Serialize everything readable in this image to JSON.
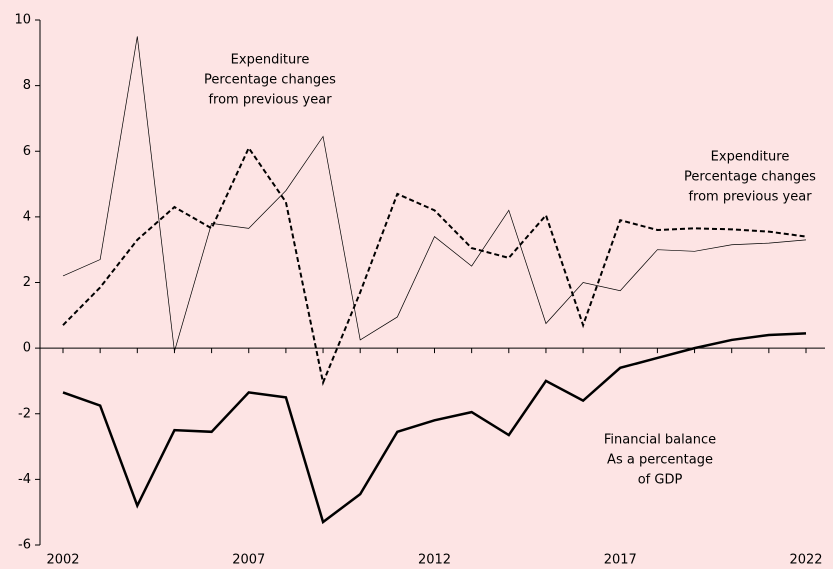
{
  "chart_data": {
    "type": "line",
    "x": [
      2002,
      2003,
      2004,
      2005,
      2006,
      2007,
      2008,
      2009,
      2010,
      2011,
      2012,
      2013,
      2014,
      2015,
      2016,
      2017,
      2018,
      2019,
      2020,
      2021,
      2022
    ],
    "xlim": [
      2002,
      2022
    ],
    "xticks": [
      2002,
      2007,
      2012,
      2017,
      2022
    ],
    "ylim": [
      -6,
      10
    ],
    "yticks": [
      -6,
      -4,
      -2,
      0,
      2,
      4,
      6,
      8,
      10
    ],
    "series": [
      {
        "color": "#000000",
        "line_style": "thin",
        "values": [
          2.2,
          2.7,
          9.5,
          -0.1,
          3.8,
          3.65,
          4.8,
          6.45,
          0.25,
          0.95,
          3.4,
          2.5,
          4.2,
          0.75,
          2.0,
          1.75,
          3.0,
          2.95,
          3.15,
          3.2,
          3.3
        ]
      },
      {
        "color": "#000000",
        "line_style": "dashed",
        "values": [
          0.7,
          1.85,
          3.3,
          4.3,
          3.65,
          6.1,
          4.45,
          -1.05,
          1.7,
          4.7,
          4.2,
          3.05,
          2.75,
          4.05,
          0.7,
          3.9,
          3.6,
          3.65,
          3.62,
          3.55,
          3.4
        ]
      },
      {
        "color": "#000000",
        "line_style": "thick",
        "values": [
          -1.35,
          -1.75,
          -4.8,
          -2.5,
          -2.55,
          -1.35,
          -1.5,
          -5.3,
          -4.45,
          -2.55,
          -2.2,
          -1.95,
          -2.65,
          -1.0,
          -1.6,
          -0.6,
          -0.3,
          0.0,
          0.25,
          0.4,
          0.45
        ]
      }
    ],
    "annotations": [
      [
        "Expenditure",
        "Percentage changes",
        "from previous year"
      ],
      [
        "Expenditure",
        "Percentage changes",
        "from previous year"
      ],
      [
        "Financial balance",
        "As a percentage",
        "of GDP"
      ]
    ]
  }
}
